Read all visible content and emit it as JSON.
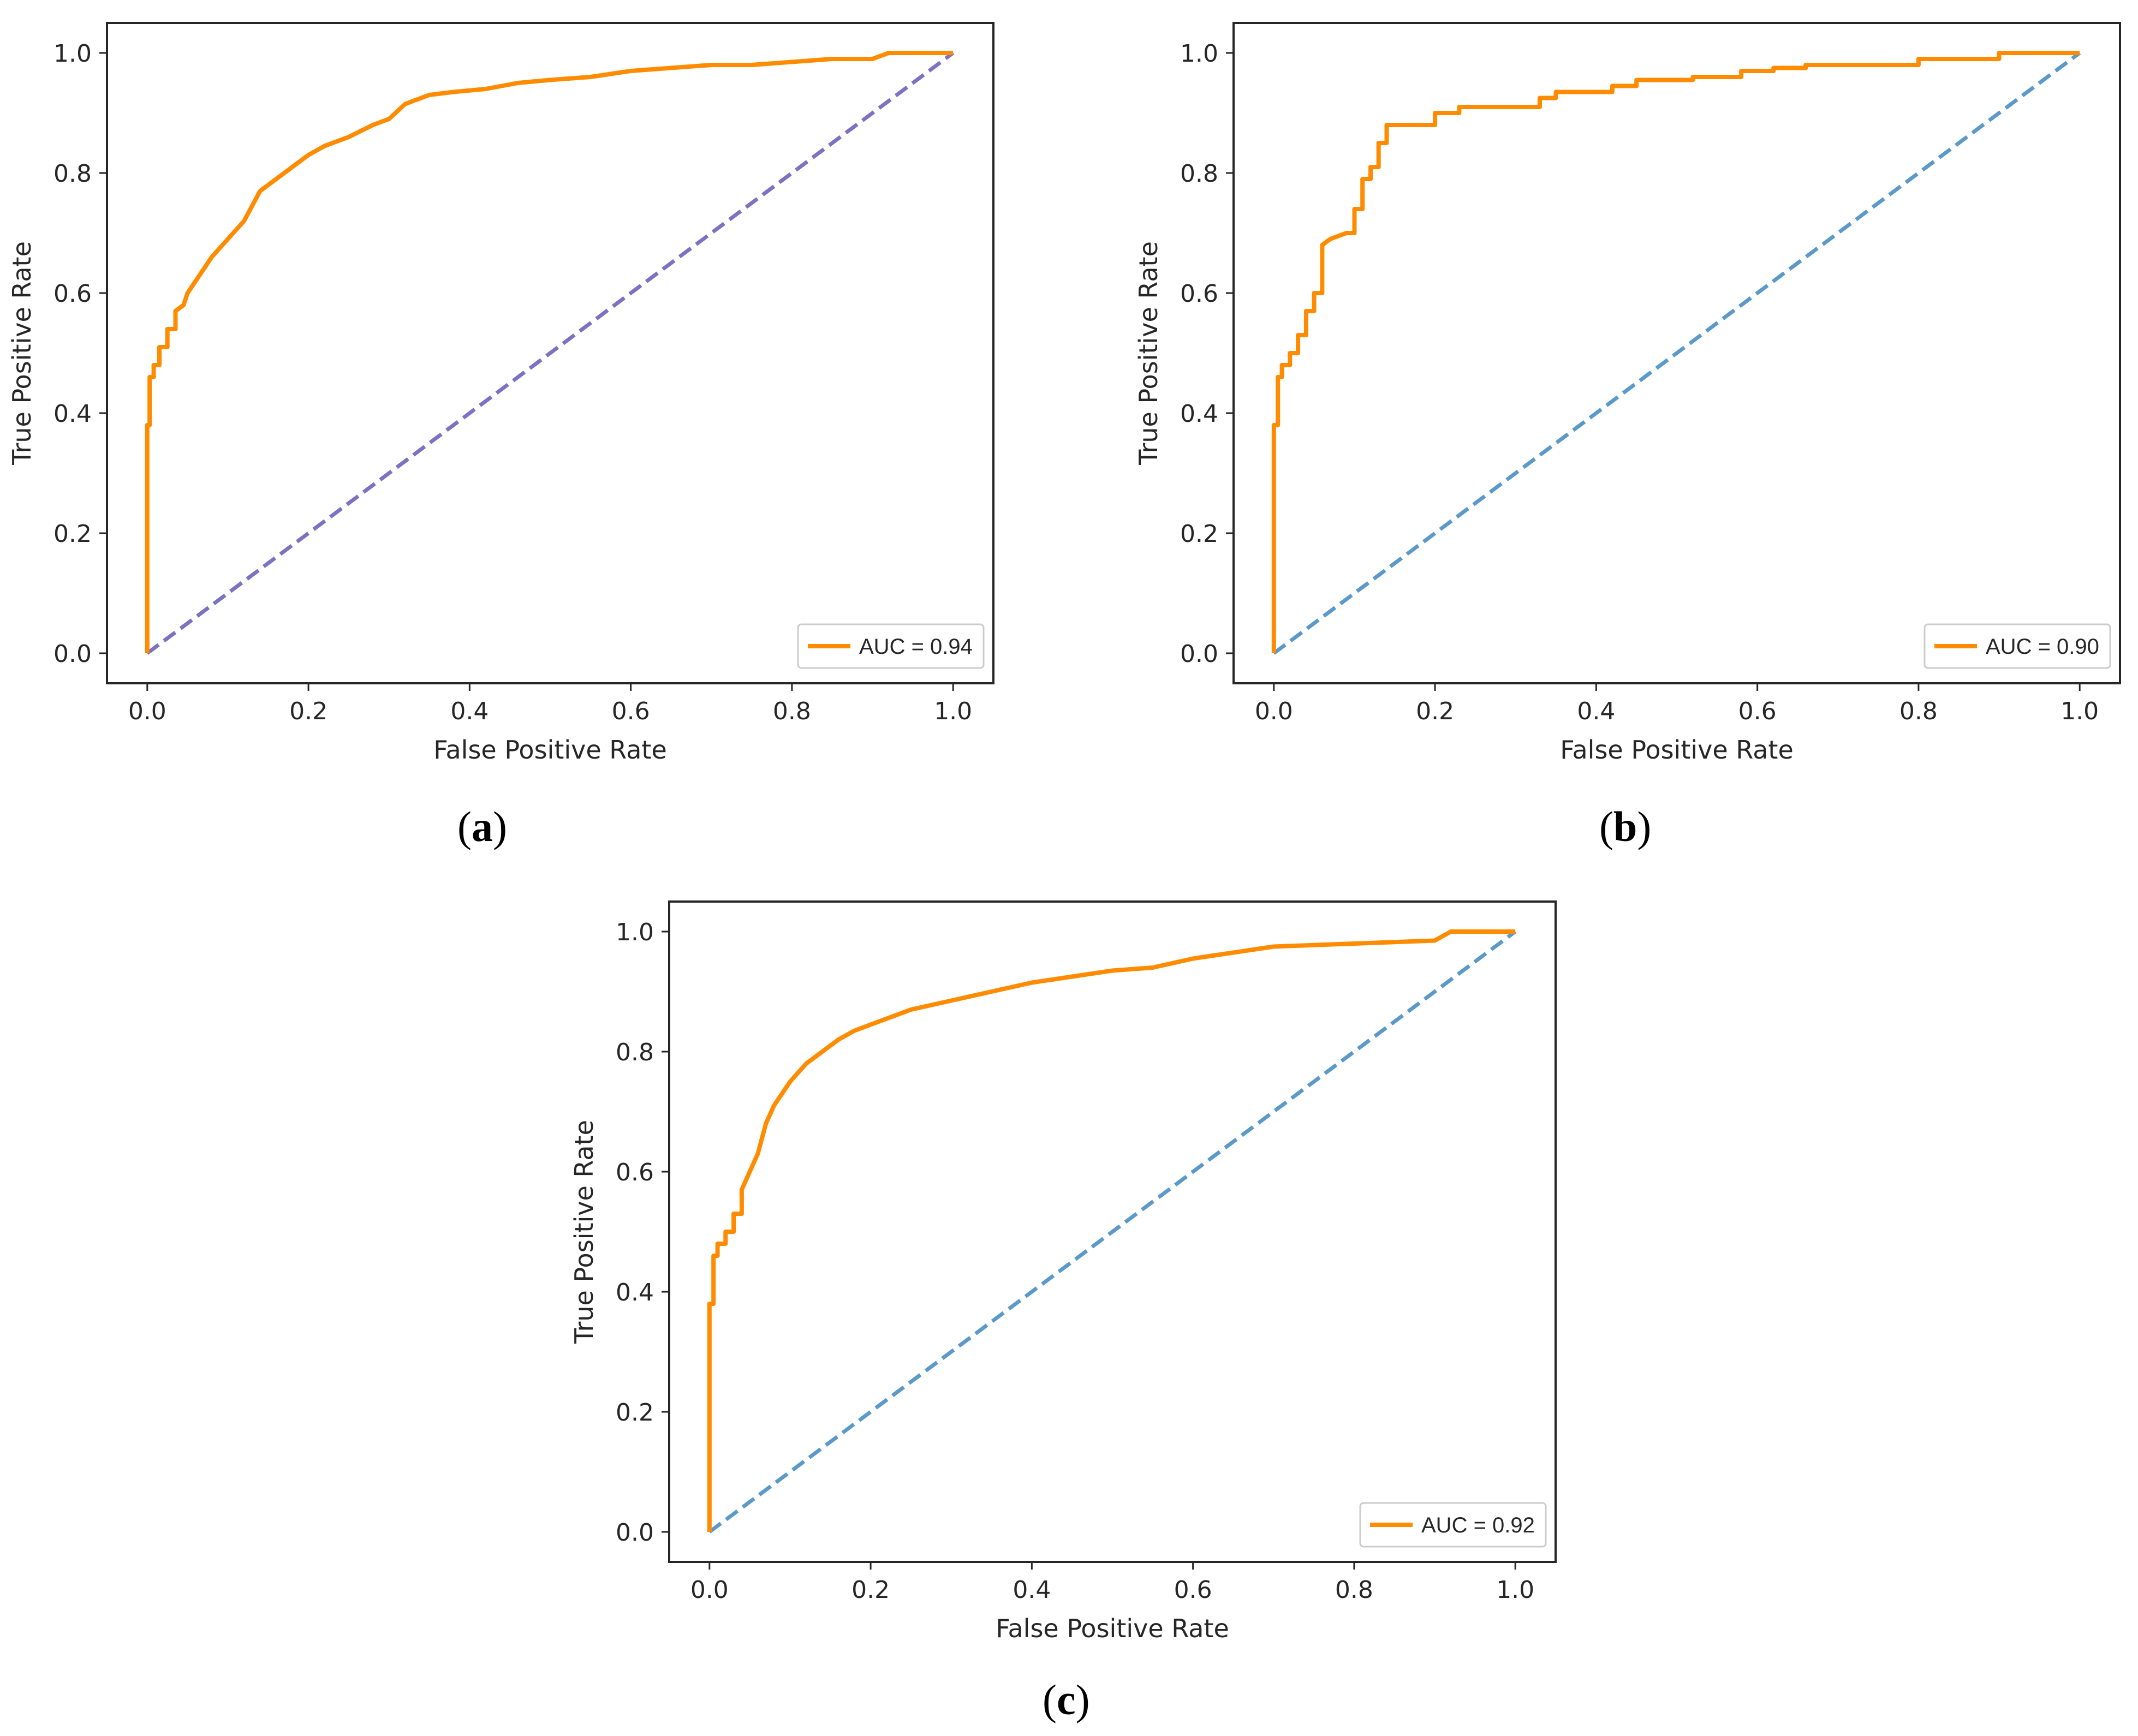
{
  "chart_data": [
    {
      "type": "line",
      "panel_label": "a",
      "xlabel": "False Positive Rate",
      "ylabel": "True Positive Rate",
      "xlim": [
        -0.05,
        1.05
      ],
      "ylim": [
        -0.05,
        1.05
      ],
      "xticks": [
        "0.0",
        "0.2",
        "0.4",
        "0.6",
        "0.8",
        "1.0"
      ],
      "yticks": [
        "0.0",
        "0.2",
        "0.4",
        "0.6",
        "0.8",
        "1.0"
      ],
      "grid": false,
      "legend_position": "lower-right",
      "series": [
        {
          "name": "AUC = 0.94",
          "color": "#ff8c00",
          "style": "solid",
          "x": [
            0.0,
            0.0,
            0.003,
            0.003,
            0.008,
            0.008,
            0.015,
            0.015,
            0.025,
            0.025,
            0.035,
            0.035,
            0.045,
            0.05,
            0.06,
            0.07,
            0.08,
            0.1,
            0.12,
            0.14,
            0.16,
            0.18,
            0.2,
            0.22,
            0.25,
            0.28,
            0.3,
            0.32,
            0.35,
            0.38,
            0.42,
            0.46,
            0.5,
            0.55,
            0.6,
            0.65,
            0.7,
            0.75,
            0.8,
            0.85,
            0.9,
            0.92,
            0.96,
            1.0
          ],
          "y": [
            0.0,
            0.38,
            0.38,
            0.46,
            0.46,
            0.48,
            0.48,
            0.51,
            0.51,
            0.54,
            0.54,
            0.57,
            0.58,
            0.6,
            0.62,
            0.64,
            0.66,
            0.69,
            0.72,
            0.77,
            0.79,
            0.81,
            0.83,
            0.845,
            0.86,
            0.88,
            0.89,
            0.915,
            0.93,
            0.935,
            0.94,
            0.95,
            0.955,
            0.96,
            0.97,
            0.975,
            0.98,
            0.98,
            0.985,
            0.99,
            0.99,
            1.0,
            1.0,
            1.0
          ]
        },
        {
          "name": "",
          "color": "#7b72c2",
          "style": "dashed",
          "x": [
            0.0,
            1.0
          ],
          "y": [
            0.0,
            1.0
          ]
        }
      ]
    },
    {
      "type": "line",
      "panel_label": "b",
      "xlabel": "False Positive Rate",
      "ylabel": "True Positive Rate",
      "xlim": [
        -0.05,
        1.05
      ],
      "ylim": [
        -0.05,
        1.05
      ],
      "xticks": [
        "0.0",
        "0.2",
        "0.4",
        "0.6",
        "0.8",
        "1.0"
      ],
      "yticks": [
        "0.0",
        "0.2",
        "0.4",
        "0.6",
        "0.8",
        "1.0"
      ],
      "grid": false,
      "legend_position": "lower-right",
      "series": [
        {
          "name": "AUC = 0.90",
          "color": "#ff8c00",
          "style": "solid",
          "x": [
            0.0,
            0.0,
            0.005,
            0.005,
            0.01,
            0.01,
            0.02,
            0.02,
            0.03,
            0.03,
            0.04,
            0.04,
            0.05,
            0.05,
            0.06,
            0.06,
            0.07,
            0.09,
            0.1,
            0.1,
            0.11,
            0.11,
            0.12,
            0.12,
            0.13,
            0.13,
            0.14,
            0.14,
            0.2,
            0.2,
            0.23,
            0.23,
            0.33,
            0.33,
            0.35,
            0.35,
            0.42,
            0.42,
            0.45,
            0.45,
            0.52,
            0.52,
            0.58,
            0.58,
            0.62,
            0.62,
            0.66,
            0.66,
            0.8,
            0.8,
            0.9,
            0.9,
            1.0
          ],
          "y": [
            0.0,
            0.38,
            0.38,
            0.46,
            0.46,
            0.48,
            0.48,
            0.5,
            0.5,
            0.53,
            0.53,
            0.57,
            0.57,
            0.6,
            0.6,
            0.68,
            0.69,
            0.7,
            0.7,
            0.74,
            0.74,
            0.79,
            0.79,
            0.81,
            0.81,
            0.85,
            0.85,
            0.88,
            0.88,
            0.9,
            0.9,
            0.91,
            0.91,
            0.925,
            0.925,
            0.935,
            0.935,
            0.945,
            0.945,
            0.955,
            0.955,
            0.96,
            0.96,
            0.97,
            0.97,
            0.975,
            0.975,
            0.98,
            0.98,
            0.99,
            0.99,
            1.0,
            1.0
          ]
        },
        {
          "name": "",
          "color": "#5b9ac8",
          "style": "dashed",
          "x": [
            0.0,
            1.0
          ],
          "y": [
            0.0,
            1.0
          ]
        }
      ]
    },
    {
      "type": "line",
      "panel_label": "c",
      "xlabel": "False Positive Rate",
      "ylabel": "True Positive Rate",
      "xlim": [
        -0.05,
        1.05
      ],
      "ylim": [
        -0.05,
        1.05
      ],
      "xticks": [
        "0.0",
        "0.2",
        "0.4",
        "0.6",
        "0.8",
        "1.0"
      ],
      "yticks": [
        "0.0",
        "0.2",
        "0.4",
        "0.6",
        "0.8",
        "1.0"
      ],
      "grid": false,
      "legend_position": "lower-right",
      "series": [
        {
          "name": "AUC = 0.92",
          "color": "#ff8c00",
          "style": "solid",
          "x": [
            0.0,
            0.0,
            0.005,
            0.005,
            0.01,
            0.01,
            0.02,
            0.02,
            0.03,
            0.03,
            0.04,
            0.04,
            0.05,
            0.06,
            0.07,
            0.08,
            0.1,
            0.12,
            0.14,
            0.16,
            0.18,
            0.2,
            0.25,
            0.3,
            0.35,
            0.4,
            0.45,
            0.5,
            0.55,
            0.6,
            0.65,
            0.7,
            0.8,
            0.9,
            0.92,
            1.0
          ],
          "y": [
            0.0,
            0.38,
            0.38,
            0.46,
            0.46,
            0.48,
            0.48,
            0.5,
            0.5,
            0.53,
            0.53,
            0.57,
            0.6,
            0.63,
            0.68,
            0.71,
            0.75,
            0.78,
            0.8,
            0.82,
            0.835,
            0.845,
            0.87,
            0.885,
            0.9,
            0.915,
            0.925,
            0.935,
            0.94,
            0.955,
            0.965,
            0.975,
            0.98,
            0.985,
            1.0,
            1.0
          ]
        },
        {
          "name": "",
          "color": "#5b9ac8",
          "style": "dashed",
          "x": [
            0.0,
            1.0
          ],
          "y": [
            0.0,
            1.0
          ]
        }
      ]
    }
  ],
  "captions": {
    "a": "a",
    "b": "b",
    "c": "c"
  }
}
